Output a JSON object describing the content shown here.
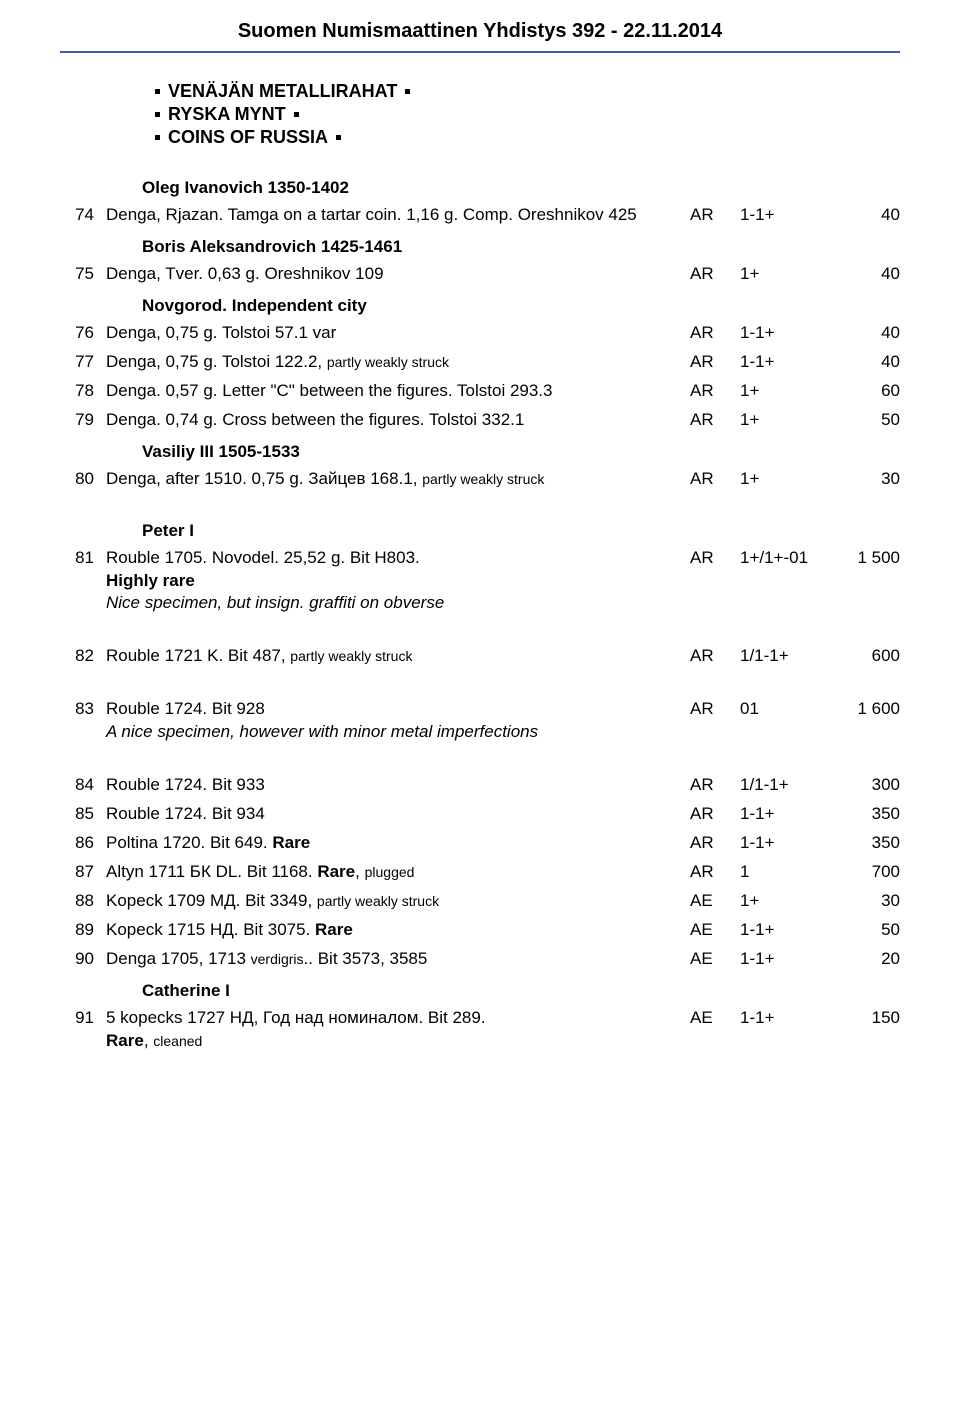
{
  "page_title": "Suomen Numismaattinen Yhdistys 392 - 22.11.2014",
  "section_headers": [
    "VENÄJÄN METALLIRAHAT",
    "RYSKA MYNT",
    "COINS OF RUSSIA"
  ],
  "subheadings": {
    "oleg": "Oleg Ivanovich 1350-1402",
    "boris": "Boris Aleksandrovich 1425-1461",
    "novgorod": "Novgorod. Independent city",
    "vasiliy": "Vasiliy III 1505-1533",
    "peter": "Peter I",
    "catherine": "Catherine I"
  },
  "lots": {
    "74": {
      "num": "74",
      "desc": "Denga, Rjazan. Tamga on a tartar coin. 1,16 g. Comp. Oreshnikov 425",
      "metal": "AR",
      "grade": "1-1+",
      "price": "40"
    },
    "75": {
      "num": "75",
      "desc": "Denga, Tver. 0,63 g. Oreshnikov 109",
      "metal": "AR",
      "grade": "1+",
      "price": "40"
    },
    "76": {
      "num": "76",
      "desc": "Denga, 0,75 g. Tolstoi 57.1 var",
      "metal": "AR",
      "grade": "1-1+",
      "price": "40"
    },
    "77": {
      "num": "77",
      "desc_pre": "Denga, 0,75 g. Tolstoi 122.2, ",
      "desc_small": "partly weakly struck",
      "metal": "AR",
      "grade": "1-1+",
      "price": "40"
    },
    "78": {
      "num": "78",
      "desc": "Denga. 0,57 g. Letter \"C\" between the figures. Tolstoi 293.3",
      "metal": "AR",
      "grade": "1+",
      "price": "60"
    },
    "79": {
      "num": "79",
      "desc": "Denga. 0,74 g. Cross between the figures. Tolstoi 332.1",
      "metal": "AR",
      "grade": "1+",
      "price": "50"
    },
    "80": {
      "num": "80",
      "desc_pre": "Denga, after 1510. 0,75 g. Зайцев 168.1, ",
      "desc_small": "partly weakly struck",
      "metal": "AR",
      "grade": "1+",
      "price": "30"
    },
    "81": {
      "num": "81",
      "desc_line1": "Rouble 1705. Novodel. 25,52 g. Bit H803.",
      "desc_bold": "Highly rare",
      "desc_italic": "Nice specimen, but insign. graffiti on obverse",
      "metal": "AR",
      "grade": "1+/1+-01",
      "price": "1 500"
    },
    "82": {
      "num": "82",
      "desc_pre": "Rouble 1721 K. Bit 487, ",
      "desc_small": "partly weakly struck",
      "metal": "AR",
      "grade": "1/1-1+",
      "price": "600"
    },
    "83": {
      "num": "83",
      "desc_line1": "Rouble 1724. Bit 928",
      "desc_italic": "A nice specimen, however with minor metal imperfections",
      "metal": "AR",
      "grade": "01",
      "price": "1 600"
    },
    "84": {
      "num": "84",
      "desc": "Rouble 1724. Bit 933",
      "metal": "AR",
      "grade": "1/1-1+",
      "price": "300"
    },
    "85": {
      "num": "85",
      "desc": "Rouble 1724. Bit 934",
      "metal": "AR",
      "grade": "1-1+",
      "price": "350"
    },
    "86": {
      "num": "86",
      "desc_pre": "Poltina 1720. Bit 649. ",
      "desc_bold": "Rare",
      "metal": "AR",
      "grade": "1-1+",
      "price": "350"
    },
    "87": {
      "num": "87",
      "desc_pre": "Altyn 1711 БК DL. Bit 1168. ",
      "desc_bold": "Rare",
      "desc_after": ", ",
      "desc_small": "plugged",
      "metal": "AR",
      "grade": "1",
      "price": "700"
    },
    "88": {
      "num": "88",
      "desc_pre": "Kopeck 1709 МД. Bit 3349, ",
      "desc_small": "partly weakly struck",
      "metal": "AE",
      "grade": "1+",
      "price": "30"
    },
    "89": {
      "num": "89",
      "desc_pre": "Kopeck 1715 НД. Bit 3075. ",
      "desc_bold": "Rare",
      "metal": "AE",
      "grade": "1-1+",
      "price": "50"
    },
    "90": {
      "num": "90",
      "desc_pre": "Denga 1705, 1713 ",
      "desc_small": "verdigris",
      "desc_after": ".. Bit 3573, 3585",
      "metal": "AE",
      "grade": "1-1+",
      "price": "20"
    },
    "91": {
      "num": "91",
      "desc_line1": "5 kopecks 1727 НД, Год над номиналом. Bit 289.",
      "desc_bold": "Rare",
      "desc_after": ", ",
      "desc_small": "cleaned",
      "metal": "AE",
      "grade": "1-1+",
      "price": "150"
    }
  },
  "colors": {
    "rule": "#3b5ea8",
    "text": "#000000",
    "bg": "#ffffff"
  }
}
